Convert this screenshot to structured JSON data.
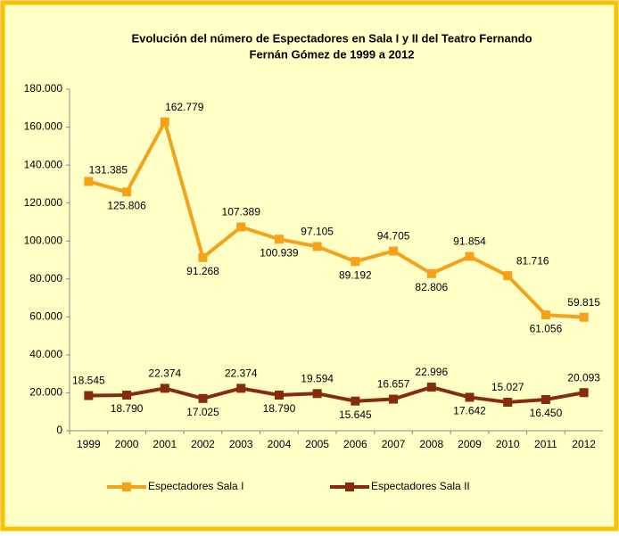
{
  "chart_data": {
    "type": "line",
    "title": [
      "Evolución del número de Espectadores en Sala I y II del Teatro Fernando",
      "Fernán Gómez de 1999 a 2012"
    ],
    "categories": [
      "1999",
      "2000",
      "2001",
      "2002",
      "2003",
      "2004",
      "2005",
      "2006",
      "2007",
      "2008",
      "2009",
      "2010",
      "2011",
      "2012"
    ],
    "series": [
      {
        "name": "Espectadores Sala I",
        "color": "#f7a11a",
        "values": [
          131385,
          125806,
          162779,
          91268,
          107389,
          100939,
          97105,
          89192,
          94705,
          82806,
          91854,
          81716,
          61056,
          59815
        ],
        "value_labels": [
          "131.385",
          "125.806",
          "162.779",
          "91.268",
          "107.389",
          "100.939",
          "97.105",
          "89.192",
          "94.705",
          "82.806",
          "91.854",
          "81.716",
          "61.056",
          "59.815"
        ]
      },
      {
        "name": "Espectadores Sala II",
        "color": "#852c0c",
        "values": [
          18545,
          18790,
          22374,
          17025,
          22374,
          18790,
          19594,
          15645,
          16657,
          22996,
          17642,
          15027,
          16450,
          20093
        ],
        "value_labels": [
          "18.545",
          "18.790",
          "22.374",
          "17.025",
          "22.374",
          "18.790",
          "19.594",
          "15.645",
          "16.657",
          "22.996",
          "17.642",
          "15.027",
          "16.450",
          "20.093"
        ]
      }
    ],
    "ylim": [
      0,
      180000
    ],
    "yticks": [
      0,
      {
        "value": 20000,
        "label": "20.000"
      },
      {
        "value": 40000,
        "label": "40.000"
      },
      {
        "value": 60000,
        "label": "60.000"
      },
      {
        "value": 80000,
        "label": "80.000"
      },
      {
        "value": 100000,
        "label": "100.000"
      },
      {
        "value": 120000,
        "label": "120.000"
      },
      {
        "value": 140000,
        "label": "140.000"
      },
      {
        "value": 160000,
        "label": "160.000"
      },
      {
        "value": 180000,
        "label": "180.000"
      }
    ],
    "grid": false,
    "legend": "bottom"
  }
}
